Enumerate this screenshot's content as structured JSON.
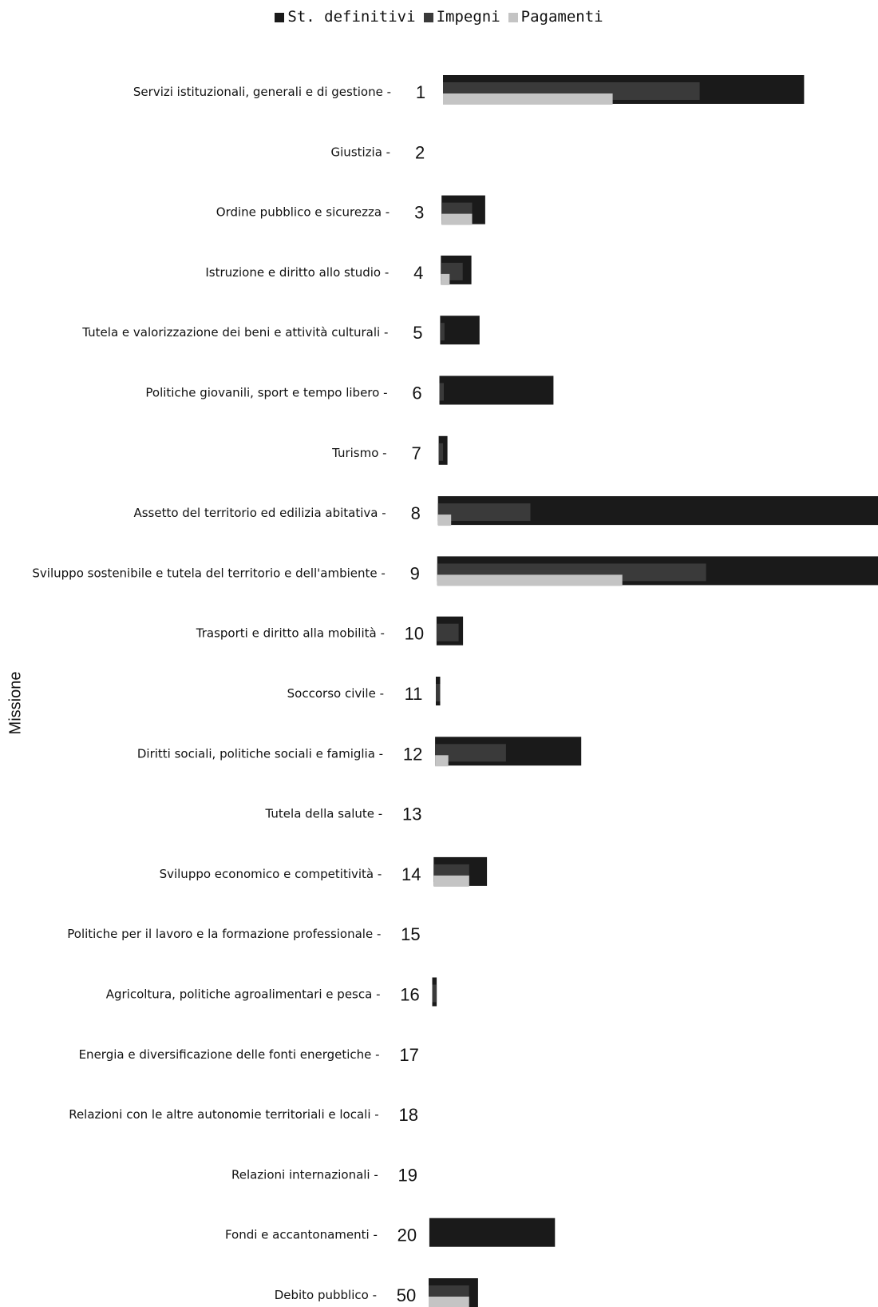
{
  "chart_data": {
    "type": "bar",
    "orientation": "horizontal",
    "ylabel": "Missione",
    "legend": {
      "placement": "top-center"
    },
    "grid": false,
    "xlim": [
      0,
      100
    ],
    "categories": [
      {
        "code": "1",
        "name": "Servizi istituzionali, generali e di gestione"
      },
      {
        "code": "2",
        "name": "Giustizia"
      },
      {
        "code": "3",
        "name": "Ordine pubblico e sicurezza"
      },
      {
        "code": "4",
        "name": "Istruzione e diritto allo studio"
      },
      {
        "code": "5",
        "name": "Tutela e valorizzazione dei beni e attività culturali"
      },
      {
        "code": "6",
        "name": "Politiche giovanili, sport e tempo libero"
      },
      {
        "code": "7",
        "name": "Turismo"
      },
      {
        "code": "8",
        "name": "Assetto del territorio ed edilizia abitativa"
      },
      {
        "code": "9",
        "name": "Sviluppo sostenibile e tutela del territorio e dell'ambiente"
      },
      {
        "code": "10",
        "name": "Trasporti e diritto alla mobilità"
      },
      {
        "code": "11",
        "name": "Soccorso civile"
      },
      {
        "code": "12",
        "name": "Diritti sociali, politiche sociali e famiglia"
      },
      {
        "code": "13",
        "name": "Tutela della salute"
      },
      {
        "code": "14",
        "name": "Sviluppo economico e competitività"
      },
      {
        "code": "15",
        "name": "Politiche per il lavoro e la formazione professionale"
      },
      {
        "code": "16",
        "name": "Agricoltura, politiche agroalimentari e pesca"
      },
      {
        "code": "17",
        "name": "Energia e diversificazione delle fonti energetiche"
      },
      {
        "code": "18",
        "name": "Relazioni con le altre autonomie territoriali e locali"
      },
      {
        "code": "19",
        "name": "Relazioni internazionali"
      },
      {
        "code": "20",
        "name": "Fondi e accantonamenti"
      },
      {
        "code": "50",
        "name": "Debito pubblico"
      }
    ],
    "series": [
      {
        "name": "St. definitivi",
        "color": "#1a1a1a",
        "values": [
          83,
          0,
          10,
          7,
          9,
          26,
          2,
          100,
          100,
          6,
          1,
          33,
          0,
          12,
          0,
          1,
          0,
          0,
          0,
          28,
          11
        ]
      },
      {
        "name": "Impegni",
        "color": "#3a3a3a",
        "values": [
          59,
          0,
          7,
          5,
          1,
          1,
          1,
          21,
          61,
          5,
          1,
          16,
          0,
          8,
          0,
          1,
          0,
          0,
          0,
          0,
          9
        ]
      },
      {
        "name": "Pagamenti",
        "color": "#c4c4c4",
        "values": [
          39,
          0,
          7,
          2,
          0,
          0,
          0,
          3,
          42,
          0,
          0,
          3,
          0,
          8,
          0,
          0,
          0,
          0,
          0,
          0,
          9
        ]
      }
    ]
  }
}
